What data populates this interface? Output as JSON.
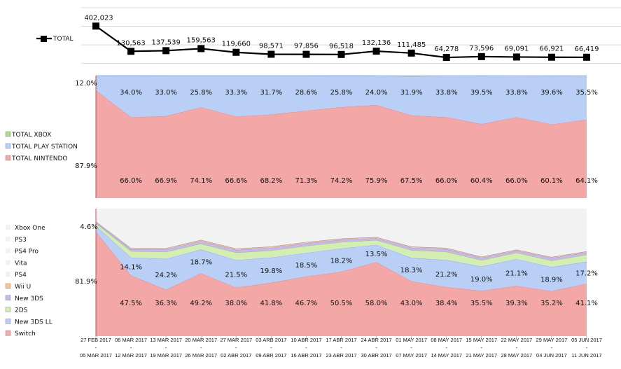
{
  "chart_data": [
    {
      "type": "line",
      "legend": [
        "TOTAL"
      ],
      "legend_position": "left",
      "ylim": [
        0,
        600000
      ],
      "grid": true,
      "series": [
        {
          "name": "TOTAL",
          "color": "#000000",
          "values": [
            402023,
            130563,
            137539,
            159563,
            119660,
            98571,
            97856,
            96518,
            132136,
            111485,
            64278,
            73596,
            69091,
            66921,
            66419
          ],
          "labels": [
            "402,023",
            "130,563",
            "137,539",
            "159,563",
            "119,660",
            "98,571",
            "97,856",
            "96,518",
            "132,136",
            "111,485",
            "64,278",
            "73,596",
            "69,091",
            "66,921",
            "66,419"
          ]
        }
      ]
    },
    {
      "type": "area",
      "stacked_percent": true,
      "legend_position": "left",
      "series": [
        {
          "name": "TOTAL NINTENDO",
          "color": "#f4a7a7",
          "values": [
            87.9,
            66.0,
            66.9,
            74.1,
            66.6,
            68.2,
            71.3,
            74.2,
            75.9,
            67.5,
            66.0,
            60.4,
            66.0,
            60.1,
            64.1
          ],
          "labels": [
            "87.9%",
            "66.0%",
            "66.9%",
            "74.1%",
            "66.6%",
            "68.2%",
            "71.3%",
            "74.2%",
            "75.9%",
            "67.5%",
            "66.0%",
            "60.4%",
            "66.0%",
            "60.1%",
            "64.1%"
          ]
        },
        {
          "name": "TOTAL PLAY STATION",
          "color": "#b9cff5",
          "values": [
            12.0,
            34.0,
            33.0,
            25.8,
            33.3,
            31.7,
            28.6,
            25.8,
            24.0,
            31.9,
            33.8,
            39.5,
            33.8,
            39.6,
            35.5
          ],
          "labels": [
            "12.0%",
            "34.0%",
            "33.0%",
            "25.8%",
            "33.3%",
            "31.7%",
            "28.6%",
            "25.8%",
            "24.0%",
            "31.9%",
            "33.8%",
            "39.5%",
            "33.8%",
            "39.6%",
            "35.5%"
          ]
        },
        {
          "name": "TOTAL XBOX",
          "color": "#b5d98a",
          "values": [
            0.1,
            0.0,
            0.1,
            0.1,
            0.1,
            0.1,
            0.1,
            0.0,
            0.1,
            0.6,
            0.2,
            0.1,
            0.2,
            0.3,
            0.4
          ]
        }
      ]
    },
    {
      "type": "area",
      "stacked_percent": true,
      "legend_position": "left",
      "series": [
        {
          "name": "Switch",
          "color": "#f4a7a7",
          "values": [
            81.9,
            47.5,
            36.3,
            49.2,
            38.0,
            41.8,
            46.7,
            50.5,
            58.0,
            43.0,
            38.4,
            35.5,
            39.3,
            35.2,
            41.1
          ],
          "labels": [
            "81.9%",
            "47.5%",
            "36.3%",
            "49.2%",
            "38.0%",
            "41.8%",
            "46.7%",
            "50.5%",
            "58.0%",
            "43.0%",
            "38.4%",
            "35.5%",
            "39.3%",
            "35.2%",
            "41.1%"
          ]
        },
        {
          "name": "New 3DS LL",
          "color": "#b9cff5",
          "values": [
            4.6,
            14.1,
            24.2,
            18.7,
            21.5,
            19.8,
            18.5,
            18.2,
            13.5,
            18.3,
            21.2,
            19.0,
            21.1,
            18.9,
            17.2
          ],
          "labels": [
            "4.6%",
            "14.1%",
            "24.2%",
            "18.7%",
            "21.5%",
            "19.8%",
            "18.5%",
            "18.2%",
            "13.5%",
            "18.3%",
            "21.2%",
            "19.0%",
            "21.1%",
            "18.9%",
            "17.2%"
          ]
        },
        {
          "name": "2DS",
          "color": "#d4edb0",
          "values": [
            2.0,
            5.0,
            5.5,
            4.5,
            6.0,
            5.5,
            5.5,
            5.0,
            3.8,
            6.0,
            6.5,
            5.0,
            5.0,
            5.0,
            5.5
          ]
        },
        {
          "name": "New 3DS",
          "color": "#c9b8e8",
          "values": [
            0.8,
            1.5,
            2.0,
            2.0,
            2.0,
            2.0,
            2.0,
            1.8,
            1.5,
            2.0,
            2.0,
            1.8,
            1.5,
            2.0,
            1.8
          ]
        },
        {
          "name": "Wii U",
          "color": "#f7c48e",
          "values": [
            0.5,
            0.8,
            0.8,
            1.0,
            1.0,
            1.0,
            1.0,
            0.9,
            0.8,
            0.8,
            0.9,
            0.8,
            0.8,
            0.8,
            0.8
          ]
        },
        {
          "name": "PS4",
          "color": "#f2f2f2"
        },
        {
          "name": "Vita",
          "color": "#f2f2f2"
        },
        {
          "name": "PS4 Pro",
          "color": "#f2f2f2"
        },
        {
          "name": "PS3",
          "color": "#f2f2f2"
        },
        {
          "name": "Xbox One",
          "color": "#f2f2f2"
        }
      ]
    }
  ],
  "x_categories": [
    [
      "27 FEB 2017",
      "05 MAR 2017"
    ],
    [
      "06 MAR 2017",
      "12 MAR 2017"
    ],
    [
      "13 MAR 2017",
      "19 MAR 2017"
    ],
    [
      "20 MAR 2017",
      "26 MAR 2017"
    ],
    [
      "27 MAR 2017",
      "02 ABR 2017"
    ],
    [
      "03 ARB 2017",
      "09 ABR 2017"
    ],
    [
      "10 ABR 2017",
      "16 ABR 2017"
    ],
    [
      "17 ABR 2017",
      "23 ABR 2017"
    ],
    [
      "24 ABR 2017",
      "30 ABR 2017"
    ],
    [
      "01 MAY 2017",
      "07 MAY 2017"
    ],
    [
      "08 MAY 2017",
      "14 MAY 2017"
    ],
    [
      "15 MAY 2017",
      "21 MAY 2017"
    ],
    [
      "22 MAY 2017",
      "28 MAY 2017"
    ],
    [
      "29 MAY 2017",
      "04 JUN 2017"
    ],
    [
      "05 JUN 2017",
      "11 JUN 2017"
    ]
  ],
  "x_separator": "-"
}
